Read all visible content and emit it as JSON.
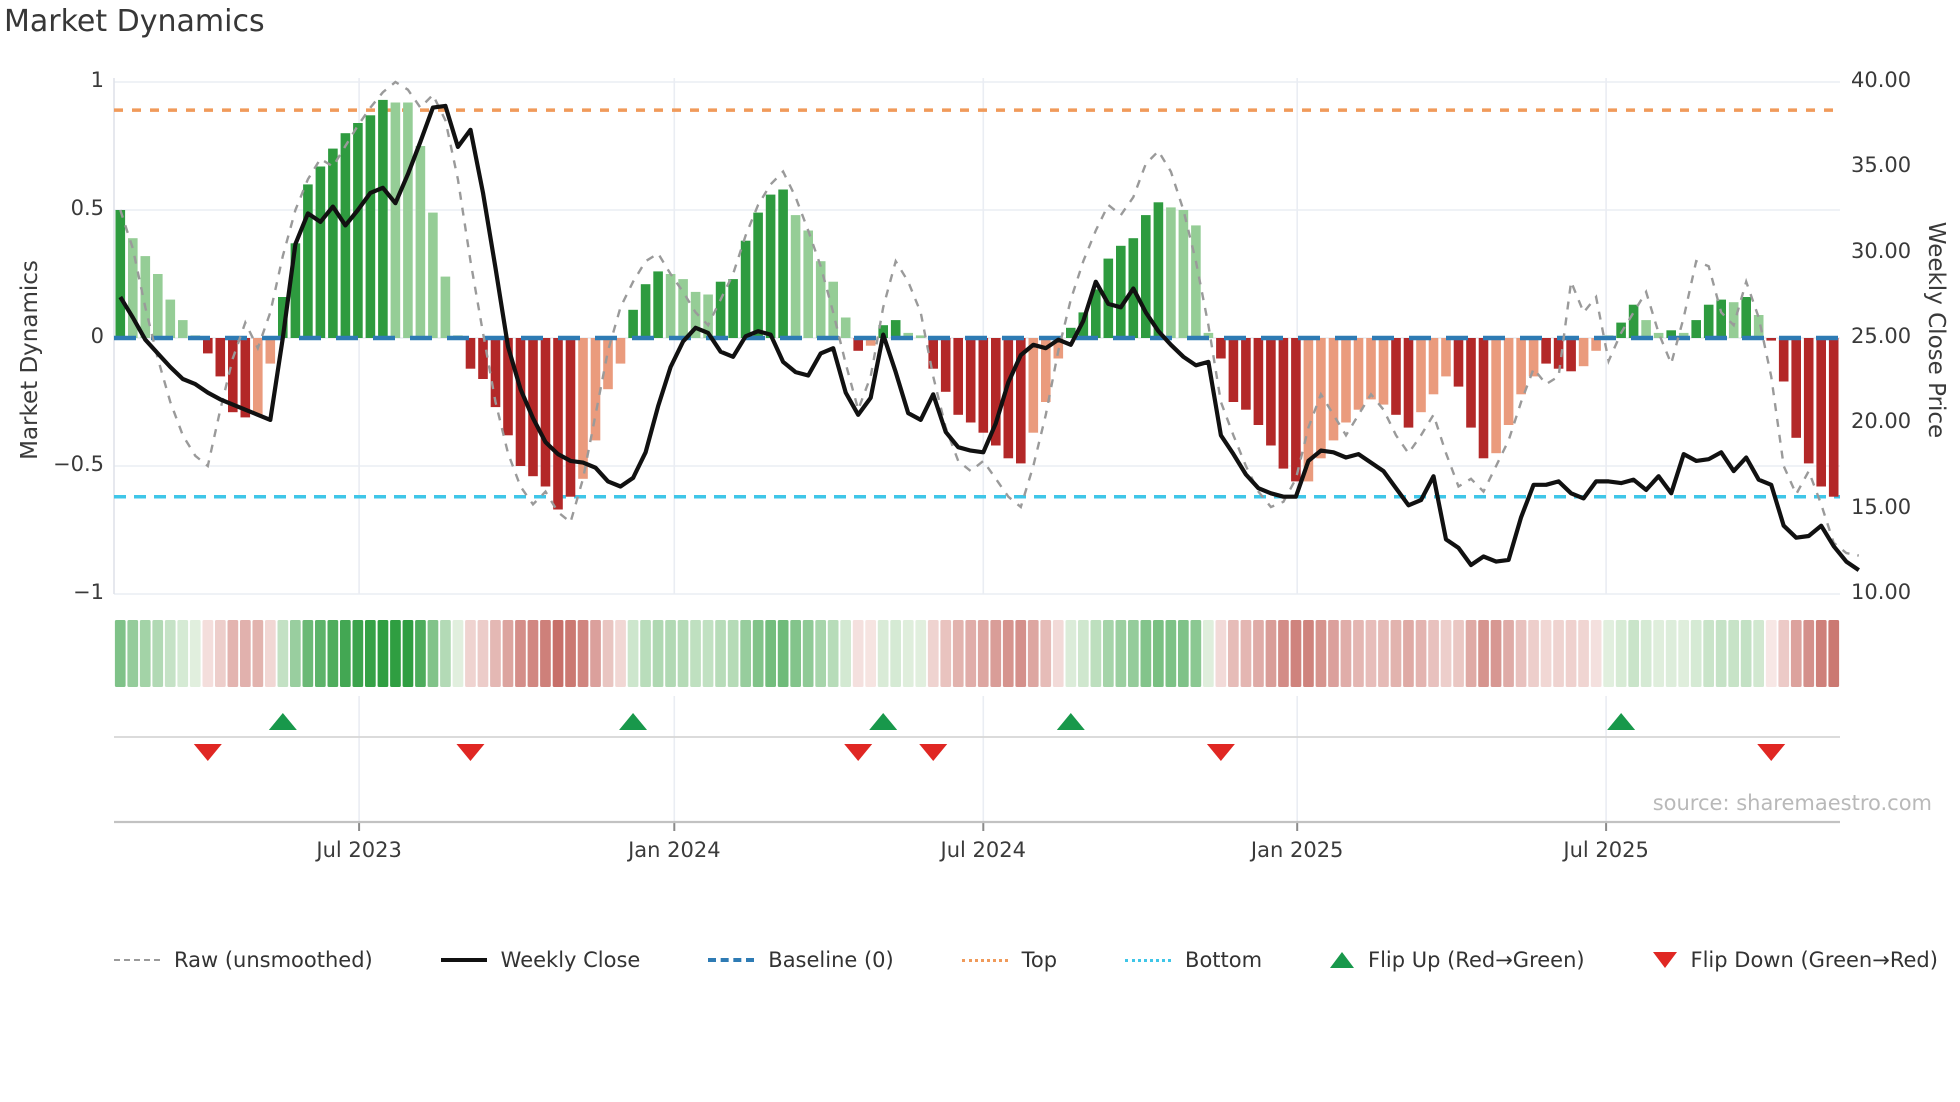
{
  "title": "Market Dynamics",
  "source": "source: sharemaestro.com",
  "left_axis": {
    "label": "Market Dynamics",
    "ticks": [
      "1",
      "0.5",
      "0",
      "−0.5",
      "−1"
    ],
    "tick_values": [
      1,
      0.5,
      0,
      -0.5,
      -1
    ]
  },
  "right_axis": {
    "label": "Weekly Close Price",
    "ticks": [
      "40.00",
      "35.00",
      "30.00",
      "25.00",
      "20.00",
      "15.00",
      "10.00"
    ],
    "tick_values": [
      40,
      35,
      30,
      25,
      20,
      15,
      10
    ]
  },
  "legend": [
    {
      "label": "Raw (unsmoothed)",
      "swatch": "dash-gray"
    },
    {
      "label": "Weekly Close",
      "swatch": "solid-black"
    },
    {
      "label": "Baseline (0)",
      "swatch": "dash-blue"
    },
    {
      "label": "Top",
      "swatch": "dot-orange"
    },
    {
      "label": "Bottom",
      "swatch": "dot-cyan"
    },
    {
      "label": "Flip Up (Red→Green)",
      "swatch": "tri-up"
    },
    {
      "label": "Flip Down (Green→Red)",
      "swatch": "tri-down"
    }
  ],
  "chart_data": {
    "type": "combo",
    "title": "Market Dynamics",
    "x_unit": "week",
    "xlabel": "",
    "left_ylabel": "Market Dynamics",
    "right_ylabel": "Weekly Close Price",
    "left_ylim": [
      -1,
      1
    ],
    "right_ylim": [
      10,
      40
    ],
    "x_tick_labels": [
      "Jul 2023",
      "Jan 2024",
      "Jul 2024",
      "Jan 2025",
      "Jul 2025"
    ],
    "x_tick_positions": [
      19.6,
      44.8,
      69.5,
      94.6,
      119.3
    ],
    "baseline": 0,
    "top_line": 0.89,
    "bottom_line": -0.62,
    "bars": {
      "name": "Market Dynamics (weekly, smoothed)",
      "values": [
        0.5,
        0.39,
        0.32,
        0.25,
        0.15,
        0.07,
        0.01,
        -0.06,
        -0.15,
        -0.29,
        -0.31,
        -0.3,
        -0.1,
        0.16,
        0.37,
        0.6,
        0.67,
        0.74,
        0.8,
        0.84,
        0.87,
        0.93,
        0.92,
        0.92,
        0.75,
        0.49,
        0.24,
        0.01,
        -0.12,
        -0.16,
        -0.27,
        -0.38,
        -0.5,
        -0.54,
        -0.58,
        -0.67,
        -0.62,
        -0.55,
        -0.4,
        -0.2,
        -0.1,
        0.11,
        0.21,
        0.26,
        0.25,
        0.23,
        0.18,
        0.17,
        0.22,
        0.23,
        0.38,
        0.49,
        0.56,
        0.58,
        0.48,
        0.42,
        0.3,
        0.22,
        0.08,
        -0.05,
        -0.03,
        0.05,
        0.07,
        0.02,
        0.01,
        -0.12,
        -0.21,
        -0.3,
        -0.33,
        -0.37,
        -0.42,
        -0.47,
        -0.49,
        -0.37,
        -0.25,
        -0.08,
        0.04,
        0.1,
        0.19,
        0.31,
        0.36,
        0.39,
        0.48,
        0.53,
        0.51,
        0.5,
        0.44,
        0.02,
        -0.08,
        -0.25,
        -0.28,
        -0.34,
        -0.42,
        -0.51,
        -0.56,
        -0.56,
        -0.47,
        -0.4,
        -0.33,
        -0.28,
        -0.24,
        -0.26,
        -0.3,
        -0.35,
        -0.29,
        -0.22,
        -0.15,
        -0.19,
        -0.35,
        -0.47,
        -0.45,
        -0.34,
        -0.22,
        -0.15,
        -0.1,
        -0.12,
        -0.13,
        -0.11,
        -0.05,
        0.01,
        0.06,
        0.13,
        0.07,
        0.02,
        0.03,
        0.02,
        0.07,
        0.13,
        0.15,
        0.14,
        0.16,
        0.09,
        -0.01,
        -0.17,
        -0.39,
        -0.49,
        -0.58,
        -0.62
      ],
      "shades": [
        "dg",
        "lg",
        "lg",
        "lg",
        "lg",
        "lg",
        "lg",
        "dr",
        "dr",
        "dr",
        "dr",
        "lr",
        "lr",
        "dg",
        "dg",
        "dg",
        "dg",
        "dg",
        "dg",
        "dg",
        "dg",
        "dg",
        "lg",
        "lg",
        "lg",
        "lg",
        "lg",
        "lg",
        "dr",
        "dr",
        "dr",
        "dr",
        "dr",
        "dr",
        "dr",
        "dr",
        "dr",
        "lr",
        "lr",
        "lr",
        "lr",
        "dg",
        "dg",
        "dg",
        "lg",
        "lg",
        "lg",
        "lg",
        "dg",
        "dg",
        "dg",
        "dg",
        "dg",
        "dg",
        "lg",
        "lg",
        "lg",
        "lg",
        "lg",
        "dr",
        "lr",
        "dg",
        "dg",
        "lg",
        "lg",
        "dr",
        "dr",
        "dr",
        "dr",
        "dr",
        "dr",
        "dr",
        "dr",
        "lr",
        "lr",
        "lr",
        "dg",
        "dg",
        "dg",
        "dg",
        "dg",
        "dg",
        "dg",
        "dg",
        "lg",
        "lg",
        "lg",
        "lg",
        "dr",
        "dr",
        "dr",
        "dr",
        "dr",
        "dr",
        "dr",
        "lr",
        "lr",
        "lr",
        "lr",
        "lr",
        "lr",
        "lr",
        "dr",
        "dr",
        "lr",
        "lr",
        "lr",
        "dr",
        "dr",
        "dr",
        "lr",
        "lr",
        "lr",
        "lr",
        "dr",
        "dr",
        "dr",
        "lr",
        "lr",
        "lg",
        "dg",
        "dg",
        "lg",
        "lg",
        "dg",
        "lg",
        "dg",
        "dg",
        "dg",
        "lg",
        "dg",
        "lg",
        "dr",
        "dr",
        "dr",
        "dr",
        "dr",
        "dr"
      ]
    },
    "raw": {
      "name": "Raw (unsmoothed)",
      "values": [
        0.5,
        0.35,
        0.12,
        -0.08,
        -0.25,
        -0.38,
        -0.46,
        -0.5,
        -0.28,
        -0.08,
        0.06,
        -0.04,
        0.1,
        0.32,
        0.5,
        0.62,
        0.7,
        0.67,
        0.75,
        0.83,
        0.9,
        0.96,
        1.0,
        0.97,
        0.9,
        0.95,
        0.85,
        0.62,
        0.3,
        0.02,
        -0.25,
        -0.45,
        -0.58,
        -0.65,
        -0.6,
        -0.68,
        -0.72,
        -0.55,
        -0.3,
        -0.05,
        0.12,
        0.22,
        0.3,
        0.33,
        0.25,
        0.18,
        0.1,
        0.05,
        0.15,
        0.25,
        0.4,
        0.52,
        0.6,
        0.65,
        0.55,
        0.42,
        0.28,
        0.1,
        -0.1,
        -0.28,
        -0.15,
        0.12,
        0.3,
        0.22,
        0.1,
        -0.15,
        -0.35,
        -0.48,
        -0.52,
        -0.48,
        -0.55,
        -0.62,
        -0.66,
        -0.5,
        -0.3,
        -0.05,
        0.15,
        0.3,
        0.42,
        0.52,
        0.48,
        0.55,
        0.68,
        0.73,
        0.65,
        0.5,
        0.3,
        0.05,
        -0.25,
        -0.38,
        -0.5,
        -0.6,
        -0.66,
        -0.64,
        -0.55,
        -0.35,
        -0.22,
        -0.3,
        -0.38,
        -0.3,
        -0.22,
        -0.28,
        -0.38,
        -0.45,
        -0.38,
        -0.3,
        -0.45,
        -0.58,
        -0.55,
        -0.6,
        -0.5,
        -0.4,
        -0.25,
        -0.12,
        -0.18,
        -0.15,
        0.22,
        0.1,
        0.16,
        -0.09,
        0.02,
        0.1,
        0.18,
        0.02,
        -0.1,
        0.08,
        0.3,
        0.28,
        0.1,
        0.05,
        0.22,
        0.08,
        -0.15,
        -0.5,
        -0.61,
        -0.52,
        -0.65,
        -0.8,
        -0.84,
        -0.85
      ]
    },
    "close": {
      "name": "Weekly Close",
      "values": [
        27.4,
        26.2,
        24.9,
        24.1,
        23.3,
        22.6,
        22.3,
        21.8,
        21.4,
        21.1,
        20.8,
        20.5,
        20.2,
        25.0,
        30.5,
        32.3,
        31.8,
        32.7,
        31.6,
        32.5,
        33.5,
        33.8,
        32.9,
        34.6,
        36.5,
        38.5,
        38.6,
        36.2,
        37.2,
        33.5,
        29.1,
        24.5,
        22.0,
        20.3,
        18.9,
        18.2,
        17.8,
        17.7,
        17.4,
        16.6,
        16.3,
        16.8,
        18.3,
        21.0,
        23.3,
        24.8,
        25.6,
        25.3,
        24.2,
        23.9,
        25.1,
        25.4,
        25.2,
        23.6,
        23.0,
        22.8,
        24.1,
        24.4,
        21.8,
        20.5,
        21.5,
        25.2,
        23.0,
        20.6,
        20.2,
        21.7,
        19.5,
        18.6,
        18.4,
        18.3,
        20.0,
        22.4,
        24.0,
        24.6,
        24.4,
        24.9,
        24.6,
        26.0,
        28.3,
        27.0,
        26.8,
        27.9,
        26.5,
        25.4,
        24.6,
        23.9,
        23.4,
        23.6,
        19.3,
        18.2,
        17.0,
        16.2,
        15.9,
        15.7,
        15.7,
        17.8,
        18.4,
        18.3,
        18.0,
        18.2,
        17.7,
        17.2,
        16.2,
        15.2,
        15.5,
        16.9,
        13.2,
        12.7,
        11.7,
        12.2,
        11.9,
        12.0,
        14.5,
        16.4,
        16.4,
        16.6,
        15.9,
        15.6,
        16.6,
        16.6,
        16.5,
        16.7,
        16.1,
        16.9,
        15.9,
        18.2,
        17.8,
        17.9,
        18.3,
        17.2,
        18.0,
        16.7,
        16.4,
        14.0,
        13.3,
        13.4,
        14.0,
        12.8,
        11.9,
        11.4
      ]
    },
    "flip_up_indices": [
      13,
      41,
      61,
      76,
      120
    ],
    "flip_down_indices": [
      7,
      28,
      59,
      65,
      88,
      132
    ],
    "heatmap": "derived from bars.values: green intensity for positive weeks, red intensity for negative weeks",
    "legend_position": "bottom",
    "grid": true,
    "colors": {
      "dark_green": "#2e9b3f",
      "light_green": "#95cd96",
      "dark_red": "#b32828",
      "light_red": "#ea9b7d",
      "baseline_blue": "#2e7bb4",
      "top_orange": "#f09a5a",
      "bottom_cyan": "#3fc6e8",
      "raw_gray": "#9a9a9a",
      "close_black": "#111111",
      "flip_up_green": "#18984b",
      "flip_down_red": "#e02723",
      "grid_gray": "#eaedf3",
      "axis_line": "#c9c9c9"
    }
  }
}
